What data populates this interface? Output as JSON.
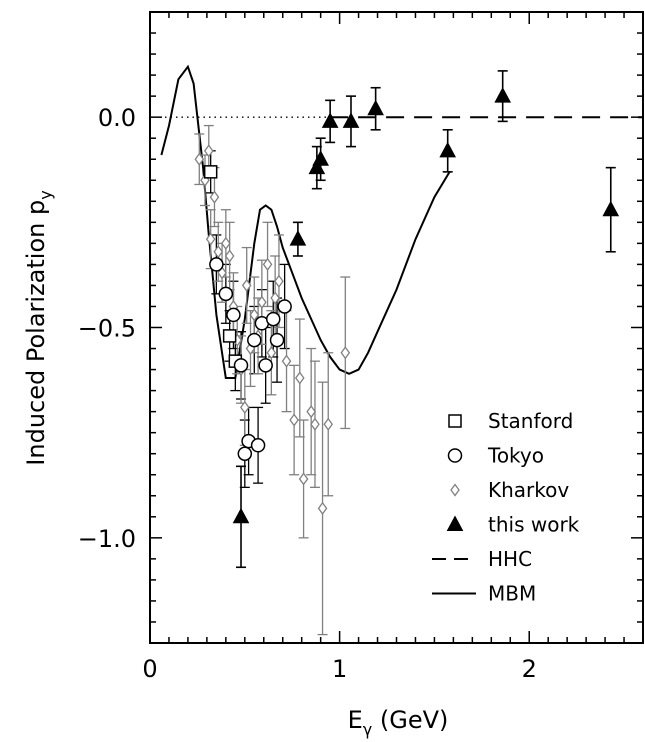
{
  "chart_data": {
    "type": "scatter",
    "xlabel": "E",
    "xlabel_sub": "γ",
    "xlabel_unit": " (GeV)",
    "ylabel": "Induced Polarization p",
    "ylabel_sub": "y",
    "xlim": [
      0,
      2.6
    ],
    "ylim": [
      -1.25,
      0.25
    ],
    "xticks": [
      0,
      1,
      2
    ],
    "xtick_labels": [
      "0",
      "1",
      "2"
    ],
    "yticks": [
      0.0,
      -0.5,
      -1.0
    ],
    "ytick_labels": [
      "0.0",
      "−0.5",
      "−1.0"
    ],
    "grid": false,
    "legend_position": "bottom-right",
    "series": [
      {
        "name": "Stanford",
        "marker": "square",
        "points": [
          {
            "x": 0.32,
            "y": -0.13,
            "yerr": 0.05
          },
          {
            "x": 0.42,
            "y": -0.52,
            "yerr": 0.06
          },
          {
            "x": 0.45,
            "y": -0.58,
            "yerr": 0.07
          }
        ]
      },
      {
        "name": "Tokyo",
        "marker": "circle",
        "points": [
          {
            "x": 0.35,
            "y": -0.35,
            "yerr": 0.07
          },
          {
            "x": 0.4,
            "y": -0.42,
            "yerr": 0.07
          },
          {
            "x": 0.44,
            "y": -0.47,
            "yerr": 0.08
          },
          {
            "x": 0.48,
            "y": -0.59,
            "yerr": 0.08
          },
          {
            "x": 0.5,
            "y": -0.8,
            "yerr": 0.08
          },
          {
            "x": 0.52,
            "y": -0.77,
            "yerr": 0.08
          },
          {
            "x": 0.55,
            "y": -0.53,
            "yerr": 0.08
          },
          {
            "x": 0.57,
            "y": -0.78,
            "yerr": 0.09
          },
          {
            "x": 0.59,
            "y": -0.49,
            "yerr": 0.08
          },
          {
            "x": 0.61,
            "y": -0.59,
            "yerr": 0.09
          },
          {
            "x": 0.65,
            "y": -0.48,
            "yerr": 0.09
          },
          {
            "x": 0.67,
            "y": -0.53,
            "yerr": 0.1
          },
          {
            "x": 0.71,
            "y": -0.45,
            "yerr": 0.1
          }
        ]
      },
      {
        "name": "Kharkov",
        "marker": "diamond",
        "points": [
          {
            "x": 0.26,
            "y": -0.1,
            "yerr": 0.06
          },
          {
            "x": 0.29,
            "y": -0.15,
            "yerr": 0.06
          },
          {
            "x": 0.31,
            "y": -0.08,
            "yerr": 0.06
          },
          {
            "x": 0.32,
            "y": -0.29,
            "yerr": 0.07
          },
          {
            "x": 0.34,
            "y": -0.19,
            "yerr": 0.07
          },
          {
            "x": 0.36,
            "y": -0.32,
            "yerr": 0.07
          },
          {
            "x": 0.38,
            "y": -0.37,
            "yerr": 0.07
          },
          {
            "x": 0.4,
            "y": -0.3,
            "yerr": 0.08
          },
          {
            "x": 0.42,
            "y": -0.33,
            "yerr": 0.08
          },
          {
            "x": 0.44,
            "y": -0.45,
            "yerr": 0.08
          },
          {
            "x": 0.46,
            "y": -0.53,
            "yerr": 0.08
          },
          {
            "x": 0.48,
            "y": -0.6,
            "yerr": 0.08
          },
          {
            "x": 0.5,
            "y": -0.69,
            "yerr": 0.09
          },
          {
            "x": 0.51,
            "y": -0.4,
            "yerr": 0.09
          },
          {
            "x": 0.53,
            "y": -0.55,
            "yerr": 0.09
          },
          {
            "x": 0.55,
            "y": -0.47,
            "yerr": 0.09
          },
          {
            "x": 0.57,
            "y": -0.52,
            "yerr": 0.09
          },
          {
            "x": 0.59,
            "y": -0.44,
            "yerr": 0.1
          },
          {
            "x": 0.62,
            "y": -0.35,
            "yerr": 0.1
          },
          {
            "x": 0.64,
            "y": -0.56,
            "yerr": 0.1
          },
          {
            "x": 0.66,
            "y": -0.43,
            "yerr": 0.1
          },
          {
            "x": 0.68,
            "y": -0.39,
            "yerr": 0.11
          },
          {
            "x": 0.72,
            "y": -0.58,
            "yerr": 0.12
          },
          {
            "x": 0.76,
            "y": -0.72,
            "yerr": 0.13
          },
          {
            "x": 0.79,
            "y": -0.62,
            "yerr": 0.14
          },
          {
            "x": 0.81,
            "y": -0.86,
            "yerr": 0.14
          },
          {
            "x": 0.85,
            "y": -0.7,
            "yerr": 0.15
          },
          {
            "x": 0.87,
            "y": -0.73,
            "yerr": 0.15
          },
          {
            "x": 0.91,
            "y": -0.93,
            "yerr": 0.3
          },
          {
            "x": 0.94,
            "y": -0.73,
            "yerr": 0.17
          },
          {
            "x": 1.03,
            "y": -0.56,
            "yerr": 0.18
          }
        ]
      },
      {
        "name": "this work",
        "marker": "triangle",
        "points": [
          {
            "x": 0.48,
            "y": -0.95,
            "yerr": 0.12
          },
          {
            "x": 0.78,
            "y": -0.29,
            "yerr": 0.04
          },
          {
            "x": 0.88,
            "y": -0.12,
            "yerr": 0.05
          },
          {
            "x": 0.9,
            "y": -0.1,
            "yerr": 0.05
          },
          {
            "x": 0.95,
            "y": -0.01,
            "yerr": 0.05
          },
          {
            "x": 1.06,
            "y": -0.01,
            "yerr": 0.06
          },
          {
            "x": 1.19,
            "y": 0.02,
            "yerr": 0.05
          },
          {
            "x": 1.57,
            "y": -0.08,
            "yerr": 0.05
          },
          {
            "x": 1.86,
            "y": 0.05,
            "yerr": 0.06
          },
          {
            "x": 2.43,
            "y": -0.22,
            "yerr": 0.1
          }
        ]
      }
    ],
    "reference_line": {
      "y": 0.0,
      "x_from": 0.05,
      "x_to": 0.95,
      "style": "dotted"
    },
    "curves": [
      {
        "name": "HHC",
        "style": "dashed",
        "x": [
          0.95,
          1.2,
          1.5,
          1.8,
          2.1,
          2.4,
          2.6
        ],
        "y": [
          0.0,
          0.0,
          0.0,
          0.0,
          0.0,
          0.0,
          0.0
        ]
      },
      {
        "name": "MBM",
        "style": "solid",
        "x": [
          0.06,
          0.1,
          0.15,
          0.2,
          0.23,
          0.25,
          0.28,
          0.31,
          0.35,
          0.4,
          0.45,
          0.5,
          0.55,
          0.58,
          0.61,
          0.64,
          0.67,
          0.7,
          0.75,
          0.8,
          0.85,
          0.9,
          0.95,
          1.0,
          1.05,
          1.1,
          1.15,
          1.2,
          1.3,
          1.4,
          1.5,
          1.58
        ],
        "y": [
          -0.09,
          -0.02,
          0.09,
          0.12,
          0.08,
          0.0,
          -0.12,
          -0.28,
          -0.47,
          -0.62,
          -0.62,
          -0.48,
          -0.3,
          -0.22,
          -0.21,
          -0.22,
          -0.26,
          -0.31,
          -0.37,
          -0.43,
          -0.48,
          -0.53,
          -0.57,
          -0.6,
          -0.61,
          -0.6,
          -0.56,
          -0.51,
          -0.41,
          -0.29,
          -0.19,
          -0.13
        ]
      }
    ],
    "legend": [
      {
        "label": "Stanford",
        "marker": "square"
      },
      {
        "label": "Tokyo",
        "marker": "circle"
      },
      {
        "label": "Kharkov",
        "marker": "diamond"
      },
      {
        "label": "this work",
        "marker": "triangle"
      },
      {
        "label": "HHC",
        "marker": "dashed-line"
      },
      {
        "label": "MBM",
        "marker": "solid-line"
      }
    ],
    "colors": {
      "axis": "#000000",
      "kharkov": "#808080",
      "markers": "#000000"
    }
  }
}
